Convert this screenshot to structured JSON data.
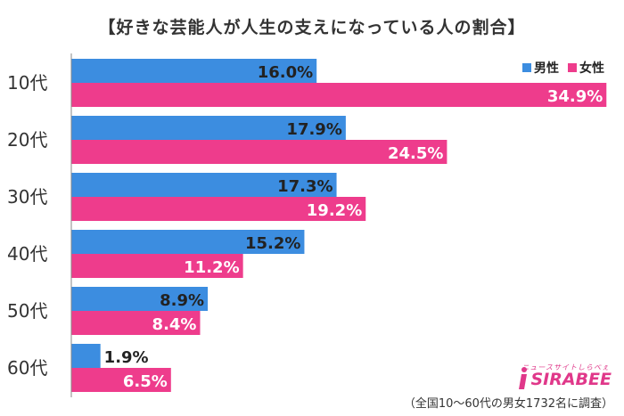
{
  "chart_data": {
    "type": "bar",
    "orientation": "horizontal",
    "title": "【好きな芸能人が人生の支えになっている人の割合】",
    "categories": [
      "10代",
      "20代",
      "30代",
      "40代",
      "50代",
      "60代"
    ],
    "series": [
      {
        "name": "男性",
        "values": [
          16.0,
          17.9,
          17.3,
          15.2,
          8.9,
          1.9
        ]
      },
      {
        "name": "女性",
        "values": [
          34.9,
          24.5,
          19.2,
          11.2,
          8.4,
          6.5
        ]
      }
    ],
    "value_suffix": "%",
    "xlim": [
      0,
      35
    ],
    "legend": "top-right",
    "grid": false,
    "colors": {
      "男性": "#3c8de0",
      "女性": "#ee3c8c"
    }
  },
  "brand": {
    "name": "SIRABEE",
    "tagline": "ニュースサイトしらべぇ"
  },
  "footnote": "（全国10～60代の男女1732名に調査）"
}
